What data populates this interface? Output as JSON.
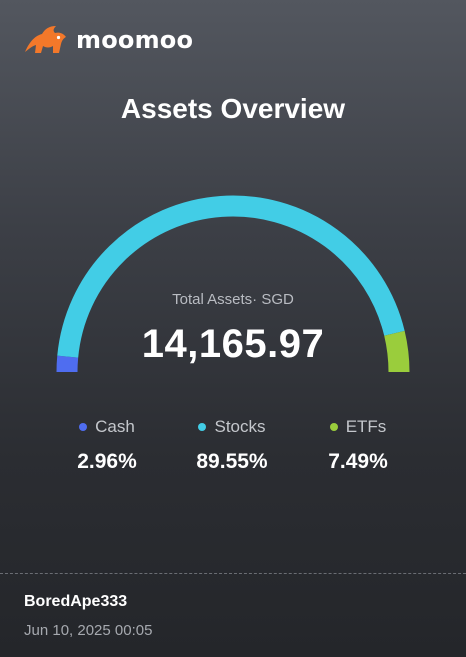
{
  "brand": {
    "name": "moomoo",
    "logo_color": "#f3782a"
  },
  "title": "Assets Overview",
  "total": {
    "label": "Total Assets· SGD",
    "value": "14,165.97"
  },
  "allocation": [
    {
      "key": "cash",
      "label": "Cash",
      "percent_text": "2.96%",
      "percent": 2.96,
      "color": "#4f6df0"
    },
    {
      "key": "stocks",
      "label": "Stocks",
      "percent_text": "89.55%",
      "percent": 89.55,
      "color": "#42cde6"
    },
    {
      "key": "etfs",
      "label": "ETFs",
      "percent_text": "7.49%",
      "percent": 7.49,
      "color": "#9acd3c"
    }
  ],
  "footer": {
    "username": "BoredApe333",
    "timestamp": "Jun 10, 2025 00:05"
  }
}
